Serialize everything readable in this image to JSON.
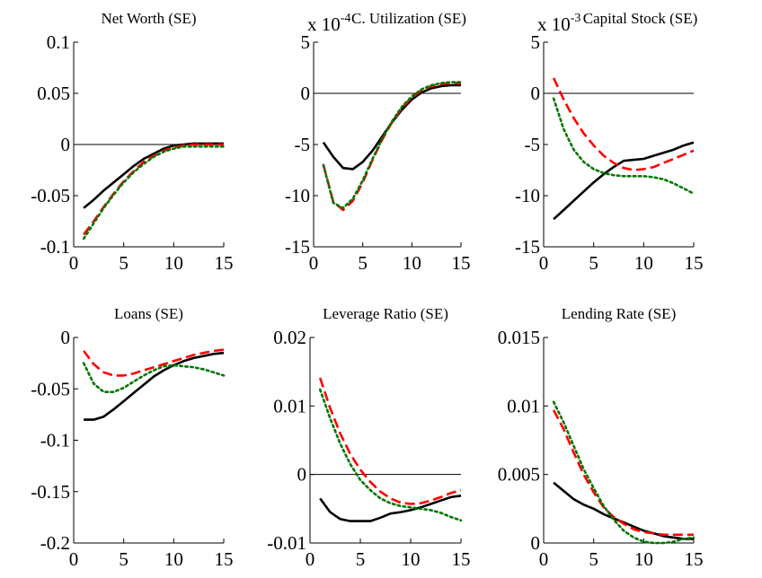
{
  "chart_data": [
    {
      "type": "line",
      "title": "Net Worth (SE)",
      "exponent": null,
      "xlim": [
        0,
        15
      ],
      "ylim": [
        -0.1,
        0.1
      ],
      "xticks": [
        0,
        5,
        10,
        15
      ],
      "xtick_labels": [
        "0",
        "5",
        "10",
        "15"
      ],
      "yticks": [
        -0.1,
        -0.05,
        0,
        0.05,
        0.1
      ],
      "ytick_labels": [
        "-0.1",
        "-0.05",
        "0",
        "0.05",
        "0.1"
      ],
      "zero_line": true,
      "x": [
        1,
        2,
        3,
        4,
        5,
        6,
        7,
        8,
        9,
        10,
        11,
        12,
        13,
        14,
        15
      ],
      "series": [
        {
          "color": "#000000",
          "style": "solid",
          "values": [
            -0.062,
            -0.054,
            -0.045,
            -0.037,
            -0.029,
            -0.021,
            -0.014,
            -0.009,
            -0.004,
            -0.001,
            0.0,
            0.001,
            0.001,
            0.001,
            0.001
          ]
        },
        {
          "color": "#ff0000",
          "style": "dashed",
          "values": [
            -0.088,
            -0.075,
            -0.061,
            -0.048,
            -0.036,
            -0.026,
            -0.017,
            -0.011,
            -0.006,
            -0.003,
            -0.001,
            0.0,
            0.0,
            0.0,
            0.0
          ]
        },
        {
          "color": "#007700",
          "style": "dotted",
          "values": [
            -0.092,
            -0.077,
            -0.062,
            -0.049,
            -0.037,
            -0.027,
            -0.019,
            -0.012,
            -0.007,
            -0.004,
            -0.002,
            -0.002,
            -0.002,
            -0.002,
            -0.002
          ]
        }
      ]
    },
    {
      "type": "line",
      "title": "C. Utilization (SE)",
      "exponent": {
        "base": "x 10",
        "power": "-4"
      },
      "xlim": [
        0,
        15
      ],
      "ylim": [
        -15,
        5
      ],
      "xticks": [
        0,
        5,
        10,
        15
      ],
      "xtick_labels": [
        "0",
        "5",
        "10",
        "15"
      ],
      "yticks": [
        -15,
        -10,
        -5,
        0,
        5
      ],
      "ytick_labels": [
        "-15",
        "-10",
        "-5",
        "0",
        "5"
      ],
      "zero_line": true,
      "x": [
        1,
        2,
        3,
        4,
        5,
        6,
        7,
        8,
        9,
        10,
        11,
        12,
        13,
        14,
        15
      ],
      "series": [
        {
          "color": "#000000",
          "style": "solid",
          "values": [
            -4.8,
            -6.2,
            -7.3,
            -7.4,
            -6.7,
            -5.6,
            -4.2,
            -2.8,
            -1.6,
            -0.6,
            0.1,
            0.5,
            0.7,
            0.8,
            0.8
          ]
        },
        {
          "color": "#ff0000",
          "style": "dashed",
          "values": [
            -7.0,
            -10.6,
            -11.4,
            -10.5,
            -8.7,
            -6.5,
            -4.5,
            -2.8,
            -1.4,
            -0.4,
            0.3,
            0.7,
            0.9,
            1.0,
            1.0
          ]
        },
        {
          "color": "#007700",
          "style": "dotted",
          "values": [
            -7.0,
            -10.7,
            -11.2,
            -10.3,
            -8.5,
            -6.4,
            -4.4,
            -2.7,
            -1.3,
            -0.3,
            0.4,
            0.8,
            1.0,
            1.1,
            1.1
          ]
        }
      ]
    },
    {
      "type": "line",
      "title": "Capital Stock (SE)",
      "exponent": {
        "base": "x 10",
        "power": "-3"
      },
      "xlim": [
        0,
        15
      ],
      "ylim": [
        -15,
        5
      ],
      "xticks": [
        0,
        5,
        10,
        15
      ],
      "xtick_labels": [
        "0",
        "5",
        "10",
        "15"
      ],
      "yticks": [
        -15,
        -10,
        -5,
        0,
        5
      ],
      "ytick_labels": [
        "-15",
        "-10",
        "-5",
        "0",
        "5"
      ],
      "zero_line": true,
      "x": [
        1,
        2,
        3,
        4,
        5,
        6,
        7,
        8,
        9,
        10,
        11,
        12,
        13,
        14,
        15
      ],
      "series": [
        {
          "color": "#000000",
          "style": "solid",
          "values": [
            -12.3,
            -11.4,
            -10.5,
            -9.6,
            -8.7,
            -7.9,
            -7.2,
            -6.6,
            -6.5,
            -6.4,
            -6.1,
            -5.8,
            -5.5,
            -5.1,
            -4.8
          ]
        },
        {
          "color": "#ff0000",
          "style": "dashed",
          "values": [
            1.5,
            -0.6,
            -2.4,
            -3.9,
            -5.1,
            -6.1,
            -6.8,
            -7.3,
            -7.5,
            -7.4,
            -7.2,
            -6.8,
            -6.4,
            -6.0,
            -5.6
          ]
        },
        {
          "color": "#007700",
          "style": "dotted",
          "values": [
            -0.5,
            -3.5,
            -5.5,
            -6.7,
            -7.4,
            -7.8,
            -8.0,
            -8.1,
            -8.1,
            -8.1,
            -8.2,
            -8.4,
            -8.8,
            -9.3,
            -9.8
          ]
        }
      ]
    },
    {
      "type": "line",
      "title": "Loans (SE)",
      "exponent": null,
      "xlim": [
        0,
        15
      ],
      "ylim": [
        -0.2,
        0
      ],
      "xticks": [
        0,
        5,
        10,
        15
      ],
      "xtick_labels": [
        "0",
        "5",
        "10",
        "15"
      ],
      "yticks": [
        -0.2,
        -0.15,
        -0.1,
        -0.05,
        0
      ],
      "ytick_labels": [
        "-0.2",
        "-0.15",
        "-0.1",
        "-0.05",
        "0"
      ],
      "zero_line": false,
      "x": [
        1,
        2,
        3,
        4,
        5,
        6,
        7,
        8,
        9,
        10,
        11,
        12,
        13,
        14,
        15
      ],
      "series": [
        {
          "color": "#000000",
          "style": "solid",
          "values": [
            -0.08,
            -0.08,
            -0.077,
            -0.07,
            -0.062,
            -0.054,
            -0.046,
            -0.038,
            -0.032,
            -0.027,
            -0.023,
            -0.02,
            -0.018,
            -0.016,
            -0.015
          ]
        },
        {
          "color": "#ff0000",
          "style": "dashed",
          "values": [
            -0.013,
            -0.026,
            -0.034,
            -0.037,
            -0.037,
            -0.035,
            -0.032,
            -0.029,
            -0.026,
            -0.023,
            -0.02,
            -0.017,
            -0.015,
            -0.013,
            -0.012
          ]
        },
        {
          "color": "#007700",
          "style": "dotted",
          "values": [
            -0.025,
            -0.045,
            -0.053,
            -0.053,
            -0.049,
            -0.043,
            -0.037,
            -0.032,
            -0.028,
            -0.027,
            -0.028,
            -0.029,
            -0.031,
            -0.034,
            -0.037
          ]
        }
      ]
    },
    {
      "type": "line",
      "title": "Leverage Ratio (SE)",
      "exponent": null,
      "xlim": [
        0,
        15
      ],
      "ylim": [
        -0.01,
        0.02
      ],
      "xticks": [
        0,
        5,
        10,
        15
      ],
      "xtick_labels": [
        "0",
        "5",
        "10",
        "15"
      ],
      "yticks": [
        -0.01,
        0,
        0.01,
        0.02
      ],
      "ytick_labels": [
        "-0.01",
        "0",
        "0.01",
        "0.02"
      ],
      "zero_line": true,
      "x": [
        1,
        2,
        3,
        4,
        5,
        6,
        7,
        8,
        9,
        10,
        11,
        12,
        13,
        14,
        15
      ],
      "series": [
        {
          "color": "#000000",
          "style": "solid",
          "values": [
            -0.0035,
            -0.0055,
            -0.0065,
            -0.0068,
            -0.0068,
            -0.0068,
            -0.0063,
            -0.0057,
            -0.0055,
            -0.0052,
            -0.0048,
            -0.0043,
            -0.0038,
            -0.0033,
            -0.0031
          ]
        },
        {
          "color": "#ff0000",
          "style": "dashed",
          "values": [
            0.0141,
            0.0097,
            0.006,
            0.003,
            0.0007,
            -0.0011,
            -0.0025,
            -0.0035,
            -0.0041,
            -0.0043,
            -0.0042,
            -0.0038,
            -0.0033,
            -0.0027,
            -0.0023
          ]
        },
        {
          "color": "#007700",
          "style": "dotted",
          "values": [
            0.0124,
            0.0082,
            0.0045,
            0.0015,
            -0.0008,
            -0.0023,
            -0.0035,
            -0.0042,
            -0.0046,
            -0.0048,
            -0.005,
            -0.0052,
            -0.0056,
            -0.0062,
            -0.0067
          ]
        }
      ]
    },
    {
      "type": "line",
      "title": "Lending Rate (SE)",
      "exponent": null,
      "xlim": [
        0,
        15
      ],
      "ylim": [
        0,
        0.015
      ],
      "xticks": [
        0,
        5,
        10,
        15
      ],
      "xtick_labels": [
        "0",
        "5",
        "10",
        "15"
      ],
      "yticks": [
        0,
        0.005,
        0.01,
        0.015
      ],
      "ytick_labels": [
        "0",
        "0.005",
        "0.01",
        "0.015"
      ],
      "zero_line": false,
      "x": [
        1,
        2,
        3,
        4,
        5,
        6,
        7,
        8,
        9,
        10,
        11,
        12,
        13,
        14,
        15
      ],
      "series": [
        {
          "color": "#000000",
          "style": "solid",
          "values": [
            0.0044,
            0.0038,
            0.0032,
            0.0028,
            0.0025,
            0.0021,
            0.0018,
            0.0015,
            0.0012,
            0.0009,
            0.0007,
            0.0005,
            0.0004,
            0.0003,
            0.0003
          ]
        },
        {
          "color": "#ff0000",
          "style": "dashed",
          "values": [
            0.0097,
            0.0083,
            0.0066,
            0.005,
            0.0037,
            0.0026,
            0.0019,
            0.0014,
            0.001,
            0.0008,
            0.0007,
            0.0006,
            0.0006,
            0.0006,
            0.0006
          ]
        },
        {
          "color": "#007700",
          "style": "dotted",
          "values": [
            0.0103,
            0.0088,
            0.0071,
            0.0054,
            0.004,
            0.0027,
            0.0017,
            0.0009,
            0.0004,
            0.0001,
            0.0,
            0.0,
            0.0001,
            0.0003,
            0.0004
          ]
        }
      ]
    }
  ]
}
